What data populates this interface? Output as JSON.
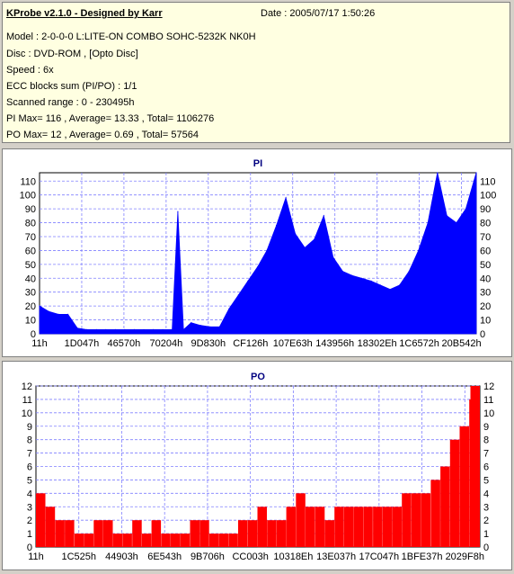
{
  "header": {
    "title": "KProbe v2.1.0 - Designed by Karr",
    "date": "Date : 2005/07/17 1:50:26",
    "lines": [
      "Model : 2-0-0-0 L:LITE-ON COMBO SOHC-5232K NK0H",
      "Disc : DVD-ROM ,  [Opto Disc]",
      "Speed : 6x",
      "ECC blocks sum (PI/PO) : 1/1",
      "Scanned range : 0 - 230495h",
      "PI Max= 116 , Average= 13.33 , Total= 1106276",
      "PO Max= 12 , Average= 0.69 , Total= 57564"
    ]
  },
  "colors": {
    "pi": "#0000ff",
    "po": "#ff0000",
    "panel_bg": "#ffffff",
    "info_bg": "#ffffe1"
  },
  "chart_data": [
    {
      "type": "area",
      "title": "PI",
      "xlabel": "",
      "ylabel": "",
      "xlim": [
        0,
        230495
      ],
      "ylim": [
        0,
        116
      ],
      "yticks": [
        0,
        10,
        20,
        30,
        40,
        50,
        60,
        70,
        80,
        90,
        100,
        110
      ],
      "xtick_labels": [
        "11h",
        "1D047h",
        "46570h",
        "70204h",
        "9D830h",
        "CF126h",
        "107E63h",
        "143956h",
        "18302Eh",
        "1C6572h",
        "20B542h"
      ],
      "grid": true,
      "color": "#0000ff",
      "x": [
        0,
        5000,
        10000,
        15000,
        20000,
        25000,
        30000,
        35000,
        40000,
        45000,
        50000,
        55000,
        60000,
        65000,
        70000,
        73000,
        76000,
        80000,
        85000,
        90000,
        95000,
        100000,
        105000,
        110000,
        115000,
        120000,
        125000,
        130000,
        135000,
        140000,
        145000,
        150000,
        155000,
        160000,
        165000,
        170000,
        175000,
        180000,
        185000,
        190000,
        195000,
        200000,
        205000,
        210000,
        215000,
        220000,
        225000,
        230495
      ],
      "values": [
        20,
        16,
        14,
        14,
        4,
        3,
        3,
        3,
        3,
        3,
        3,
        3,
        3,
        3,
        3,
        88,
        3,
        8,
        6,
        5,
        5,
        18,
        28,
        38,
        48,
        60,
        78,
        98,
        72,
        62,
        68,
        85,
        55,
        45,
        42,
        40,
        38,
        35,
        32,
        35,
        45,
        60,
        80,
        116,
        85,
        80,
        90,
        116
      ]
    },
    {
      "type": "bar",
      "title": "PO",
      "xlabel": "",
      "ylabel": "",
      "xlim": [
        0,
        230495
      ],
      "ylim": [
        0,
        12
      ],
      "yticks": [
        0,
        1,
        2,
        3,
        4,
        5,
        6,
        7,
        8,
        9,
        10,
        11,
        12
      ],
      "xtick_labels": [
        "11h",
        "1C525h",
        "44903h",
        "6E543h",
        "9B706h",
        "CC003h",
        "10318Eh",
        "13E037h",
        "17C047h",
        "1BFE37h",
        "2029F8h"
      ],
      "grid": true,
      "color": "#ff0000",
      "x": [
        0,
        5000,
        10000,
        15000,
        20000,
        25000,
        30000,
        35000,
        40000,
        45000,
        50000,
        55000,
        60000,
        65000,
        70000,
        75000,
        80000,
        85000,
        90000,
        95000,
        100000,
        105000,
        110000,
        115000,
        120000,
        125000,
        130000,
        135000,
        140000,
        145000,
        150000,
        155000,
        160000,
        165000,
        170000,
        175000,
        180000,
        185000,
        190000,
        195000,
        200000,
        205000,
        210000,
        215000,
        220000,
        225000,
        230495
      ],
      "values": [
        4,
        3,
        2,
        2,
        1,
        1,
        2,
        2,
        1,
        1,
        2,
        1,
        2,
        1,
        1,
        1,
        2,
        2,
        1,
        1,
        1,
        2,
        2,
        3,
        2,
        2,
        3,
        4,
        3,
        3,
        2,
        3,
        3,
        3,
        3,
        3,
        3,
        3,
        4,
        4,
        4,
        5,
        6,
        8,
        9,
        11,
        12
      ]
    }
  ]
}
